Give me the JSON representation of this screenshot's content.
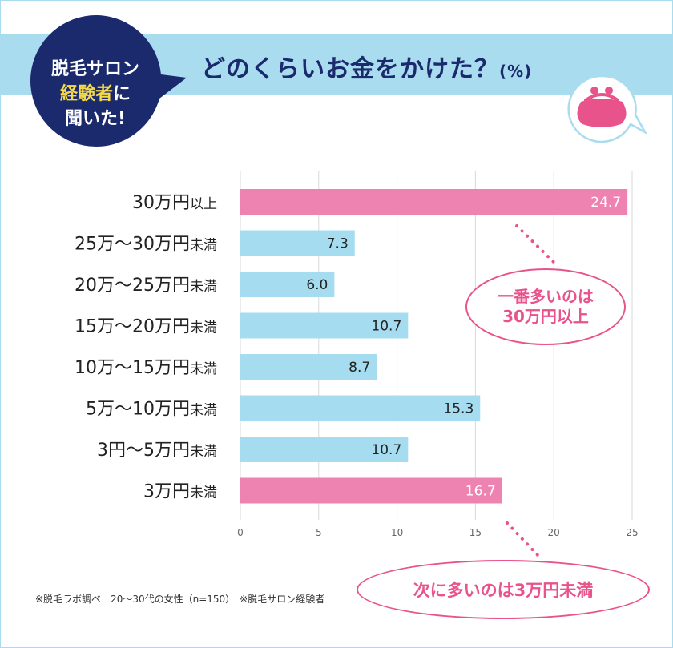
{
  "header": {
    "title": "どのくらいお金をかけた？",
    "unit": "(%)"
  },
  "badge": {
    "line1": "脱毛サロン",
    "line2_accent": "経験者",
    "line2_rest": "に",
    "line3": "聞いた!"
  },
  "callouts": {
    "top": {
      "line1": "一番多いのは",
      "line2": "30万円以上"
    },
    "bottom": "次に多いのは3万円未満"
  },
  "footnote": "※脱毛ラボ調べ　20～30代の女性（n=150）　※脱毛サロン経験者",
  "colors": {
    "highlight_bar": "#ee82b0",
    "normal_bar": "#a6dcf0",
    "accent_pink": "#e8538c",
    "navy": "#1a2a6c",
    "banner": "#a9dcef",
    "badge_accent": "#f5d949"
  },
  "icons": {
    "purse": "coin-purse-icon"
  },
  "chart_data": {
    "type": "bar",
    "orientation": "horizontal",
    "categories": [
      {
        "main": "30万円",
        "suffix": "以上"
      },
      {
        "main": "25万～30万円",
        "suffix": "未満"
      },
      {
        "main": "20万～25万円",
        "suffix": "未満"
      },
      {
        "main": "15万～20万円",
        "suffix": "未満"
      },
      {
        "main": "10万～15万円",
        "suffix": "未満"
      },
      {
        "main": "5万～10万円",
        "suffix": "未満"
      },
      {
        "main": "3円～5万円",
        "suffix": "未満"
      },
      {
        "main": "3万円",
        "suffix": "未満"
      }
    ],
    "values": [
      24.7,
      7.3,
      6.0,
      10.7,
      8.7,
      15.3,
      10.7,
      16.7
    ],
    "value_labels": [
      "24.7",
      "7.3",
      "6.0",
      "10.7",
      "8.7",
      "15.3",
      "10.7",
      "16.7"
    ],
    "highlighted": [
      true,
      false,
      false,
      false,
      false,
      false,
      false,
      true
    ],
    "xlim": [
      0,
      25
    ],
    "xticks": [
      0,
      5,
      10,
      15,
      20,
      25
    ],
    "grid": true
  }
}
